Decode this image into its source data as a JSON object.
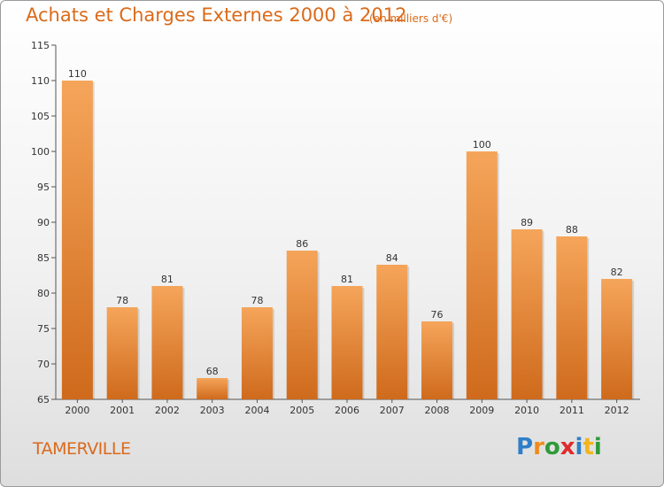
{
  "header": {
    "title": "Achats et Charges Externes 2000 à 2012",
    "subtitle": "(en milliers d'€)"
  },
  "footer": {
    "commune": "TAMERVILLE",
    "logo": {
      "text": "Proxiti",
      "letters": [
        {
          "ch": "P",
          "color": "#2f7fc8"
        },
        {
          "ch": "r",
          "color": "#f08a1c"
        },
        {
          "ch": "o",
          "color": "#2f9a3a"
        },
        {
          "ch": "x",
          "color": "#e02a2a"
        },
        {
          "ch": "i",
          "color": "#2f7fc8"
        },
        {
          "ch": "t",
          "color": "#f2b51c"
        },
        {
          "ch": "i",
          "color": "#2f9a3a"
        }
      ]
    }
  },
  "colors": {
    "accent": "#db6a1a",
    "bar_top": "#f5a55a",
    "bar_bottom": "#cf6a1c"
  },
  "chart_data": {
    "type": "bar",
    "title": "Achats et Charges Externes 2000 à 2012",
    "subtitle": "(en milliers d'€)",
    "categories": [
      "2000",
      "2001",
      "2002",
      "2003",
      "2004",
      "2005",
      "2006",
      "2007",
      "2008",
      "2009",
      "2010",
      "2011",
      "2012"
    ],
    "values": [
      110,
      78,
      81,
      68,
      78,
      86,
      81,
      84,
      76,
      100,
      89,
      88,
      82
    ],
    "ylim": [
      65,
      115
    ],
    "yticks": [
      65,
      70,
      75,
      80,
      85,
      90,
      95,
      100,
      105,
      110,
      115
    ],
    "grid": false,
    "data_labels": true
  }
}
